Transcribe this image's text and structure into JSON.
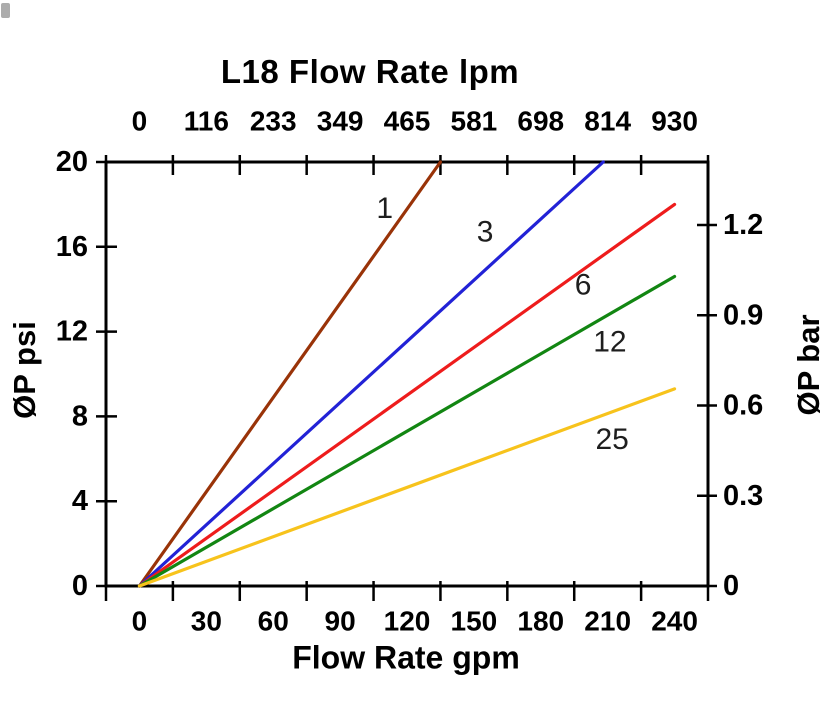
{
  "chart_data": {
    "type": "line",
    "title": "L18 Flow Rate lpm",
    "grid": false,
    "legend": "inline-labels-on-lines",
    "background_color": "#ffffff",
    "axis_color": "#000000",
    "line_label_color": "#1e1e1e",
    "axes": {
      "top": {
        "label": "L18 Flow Rate lpm",
        "ticks": [
          "0",
          "116",
          "233",
          "349",
          "465",
          "581",
          "698",
          "814",
          "930"
        ],
        "unit": "lpm",
        "style": "labels-centered-between-tick-marks"
      },
      "bottom": {
        "label": "Flow Rate gpm",
        "ticks": [
          "0",
          "30",
          "60",
          "90",
          "120",
          "150",
          "180",
          "210",
          "240"
        ],
        "unit": "gpm",
        "range_gpm": [
          0,
          240
        ],
        "style": "labels-centered-between-tick-marks"
      },
      "left": {
        "label": "ØP psi",
        "ticks": [
          "0",
          "4",
          "8",
          "12",
          "16",
          "20"
        ],
        "unit": "psi",
        "range_psi": [
          0,
          20
        ]
      },
      "right": {
        "label": "ØP bar",
        "ticks": [
          "0",
          "0.3",
          "0.6",
          "0.9",
          "1.2"
        ],
        "unit": "bar",
        "range_bar": [
          0,
          1.2
        ]
      }
    },
    "series": [
      {
        "name": "1",
        "micron_rating": 1,
        "color": "#993308",
        "points_gpm_psi": [
          [
            0,
            0
          ],
          [
            135,
            20
          ]
        ],
        "label_at_gpm_psi": [
          110,
          17.8
        ]
      },
      {
        "name": "3",
        "micron_rating": 3,
        "color": "#2222d6",
        "points_gpm_psi": [
          [
            0,
            0
          ],
          [
            208,
            20
          ]
        ],
        "label_at_gpm_psi": [
          155,
          16.7
        ]
      },
      {
        "name": "6",
        "micron_rating": 6,
        "color": "#ee1c1c",
        "points_gpm_psi": [
          [
            0,
            0
          ],
          [
            240,
            18.0
          ]
        ],
        "label_at_gpm_psi": [
          199,
          14.2
        ]
      },
      {
        "name": "12",
        "micron_rating": 12,
        "color": "#128612",
        "points_gpm_psi": [
          [
            0,
            0
          ],
          [
            240,
            14.6
          ]
        ],
        "label_at_gpm_psi": [
          211,
          11.5
        ]
      },
      {
        "name": "25",
        "micron_rating": 25,
        "color": "#f7c31c",
        "points_gpm_psi": [
          [
            0,
            0
          ],
          [
            240,
            9.3
          ]
        ],
        "label_at_gpm_psi": [
          212,
          6.9
        ]
      }
    ]
  }
}
